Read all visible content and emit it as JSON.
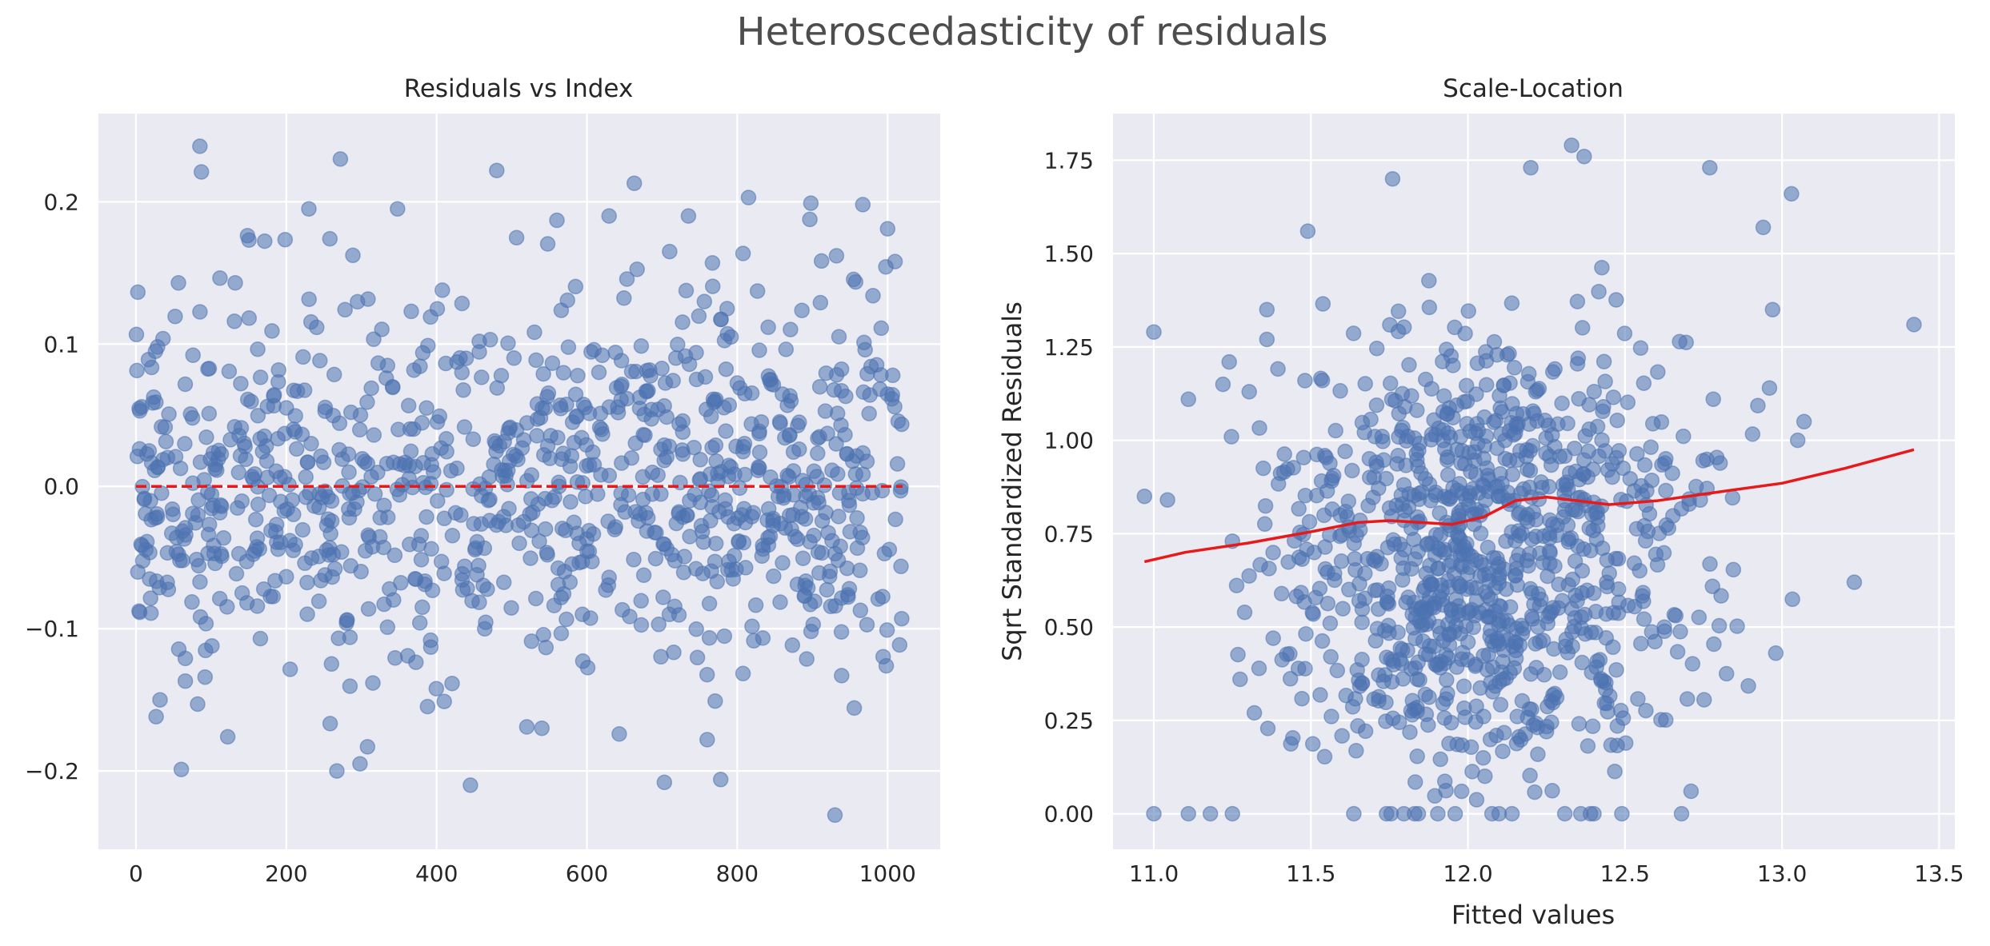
{
  "figure": {
    "title": "Heteroscedasticity of residuals",
    "background": "#ffffff",
    "axes_background": "#eaeaf2",
    "grid_color": "#ffffff",
    "point_color": "#4c72b0",
    "line_color": "#e8191b"
  },
  "chart_data": [
    {
      "type": "scatter",
      "title": "Residuals vs Index",
      "xlabel": "",
      "ylabel": "",
      "xlim": [
        -50,
        1070
      ],
      "ylim": [
        -0.255,
        0.262
      ],
      "xticks": [
        0,
        200,
        400,
        600,
        800,
        1000
      ],
      "xtick_labels": [
        "0",
        "200",
        "400",
        "600",
        "800",
        "1000"
      ],
      "yticks": [
        -0.2,
        -0.1,
        0.0,
        0.1,
        0.2
      ],
      "ytick_labels": [
        "−0.2",
        "−0.1",
        "0.0",
        "0.1",
        "0.2"
      ],
      "grid": true,
      "series": [
        {
          "kind": "scatter",
          "alpha": 0.55,
          "n_points": 1020,
          "points_sample": [
            [
              85,
              0.239
            ],
            [
              87,
              0.221
            ],
            [
              272,
              0.23
            ],
            [
              480,
              0.222
            ],
            [
              230,
              0.195
            ],
            [
              348,
              0.195
            ],
            [
              258,
              0.174
            ],
            [
              663,
              0.213
            ],
            [
              815,
              0.203
            ],
            [
              898,
              0.199
            ],
            [
              967,
              0.198
            ],
            [
              560,
              0.187
            ],
            [
              1000,
              0.181
            ],
            [
              1010,
              0.158
            ],
            [
              932,
              0.162
            ],
            [
              710,
              0.165
            ],
            [
              767,
              0.157
            ],
            [
              445,
              -0.21
            ],
            [
              298,
              -0.195
            ],
            [
              308,
              -0.183
            ],
            [
              703,
              -0.208
            ],
            [
              778,
              -0.206
            ],
            [
              930,
              -0.231
            ],
            [
              122,
              -0.176
            ],
            [
              32,
              -0.15
            ],
            [
              82,
              -0.153
            ],
            [
              520,
              -0.169
            ],
            [
              540,
              -0.17
            ],
            [
              643,
              -0.174
            ],
            [
              760,
              -0.178
            ]
          ]
        },
        {
          "kind": "line",
          "style": "dashed",
          "x": [
            0,
            1020
          ],
          "y": [
            0.0,
            0.0
          ]
        }
      ]
    },
    {
      "type": "scatter",
      "title": "Scale-Location",
      "xlabel": "Fitted values",
      "ylabel": "Sqrt Standardized Residuals",
      "xlim": [
        10.87,
        13.55
      ],
      "ylim": [
        -0.095,
        1.875
      ],
      "xticks": [
        11.0,
        11.5,
        12.0,
        12.5,
        13.0,
        13.5
      ],
      "xtick_labels": [
        "11.0",
        "11.5",
        "12.0",
        "12.5",
        "13.0",
        "13.5"
      ],
      "yticks": [
        0.0,
        0.25,
        0.5,
        0.75,
        1.0,
        1.25,
        1.5,
        1.75
      ],
      "ytick_labels": [
        "0.00",
        "0.25",
        "0.50",
        "0.75",
        "1.00",
        "1.25",
        "1.50",
        "1.75"
      ],
      "grid": true,
      "series": [
        {
          "kind": "scatter",
          "alpha": 0.55,
          "n_points": 1020,
          "points_sample": [
            [
              10.97,
              0.85
            ],
            [
              11.0,
              1.29
            ],
            [
              11.11,
              1.11
            ],
            [
              11.22,
              1.15
            ],
            [
              11.24,
              1.21
            ],
            [
              11.25,
              0.73
            ],
            [
              11.36,
              1.35
            ],
            [
              11.36,
              1.27
            ],
            [
              11.38,
              0.47
            ],
            [
              11.32,
              0.27
            ],
            [
              13.42,
              1.31
            ],
            [
              13.23,
              0.62
            ],
            [
              13.07,
              1.05
            ],
            [
              13.03,
              1.66
            ],
            [
              13.05,
              1.0
            ],
            [
              12.97,
              1.35
            ],
            [
              12.96,
              1.14
            ],
            [
              12.94,
              1.57
            ],
            [
              12.98,
              0.43
            ],
            [
              12.33,
              1.79
            ],
            [
              12.37,
              1.76
            ],
            [
              11.76,
              1.7
            ],
            [
              12.2,
              1.73
            ],
            [
              12.77,
              1.73
            ],
            [
              11.49,
              1.56
            ],
            [
              11.0,
              0.0
            ],
            [
              11.11,
              0.0
            ],
            [
              11.18,
              0.0
            ],
            [
              11.25,
              0.0
            ],
            [
              11.83,
              0.0
            ],
            [
              12.68,
              0.0
            ],
            [
              12.39,
              0.0
            ],
            [
              12.49,
              0.0
            ],
            [
              12.25,
              0.22
            ],
            [
              11.98,
              0.06
            ]
          ]
        },
        {
          "kind": "line",
          "style": "solid",
          "name": "lowess",
          "x": [
            10.97,
            11.1,
            11.3,
            11.5,
            11.65,
            11.75,
            11.85,
            11.95,
            12.05,
            12.15,
            12.25,
            12.35,
            12.45,
            12.6,
            12.8,
            13.0,
            13.2,
            13.42
          ],
          "y": [
            0.675,
            0.7,
            0.725,
            0.755,
            0.78,
            0.785,
            0.78,
            0.775,
            0.795,
            0.838,
            0.848,
            0.838,
            0.828,
            0.838,
            0.862,
            0.885,
            0.925,
            0.975
          ]
        }
      ]
    }
  ]
}
